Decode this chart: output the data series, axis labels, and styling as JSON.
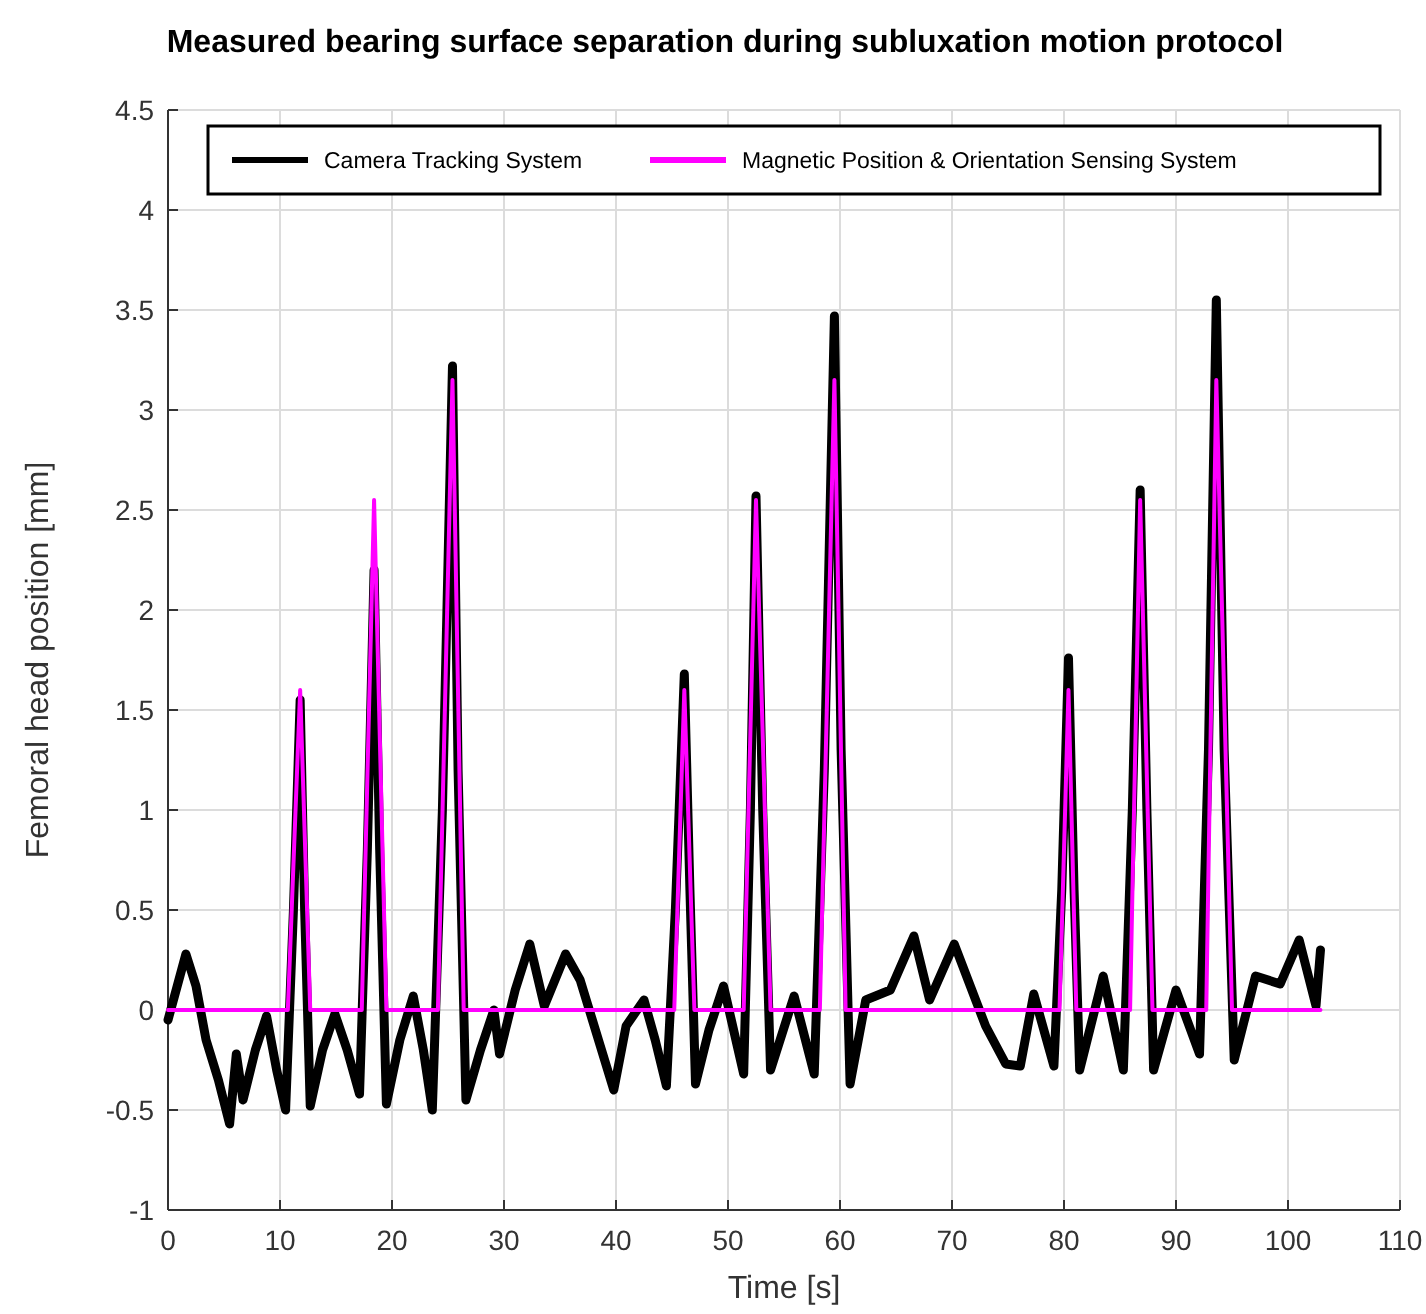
{
  "chart_data": {
    "type": "line",
    "title": "Measured bearing surface separation during subluxation motion protocol",
    "xlabel": "Time [s]",
    "ylabel": "Femoral head position [mm]",
    "xlim": [
      0,
      110
    ],
    "xticks": [
      0,
      10,
      20,
      30,
      40,
      50,
      60,
      70,
      80,
      90,
      100,
      110
    ],
    "ylim": [
      -1,
      4.5
    ],
    "yticks": [
      -1,
      -0.5,
      0,
      0.5,
      1,
      1.5,
      2,
      2.5,
      3,
      3.5,
      4,
      4.5
    ],
    "grid": true,
    "legend": "top",
    "line_style": "solid",
    "series": [
      {
        "name": "Camera Tracking System",
        "color": "#000000",
        "x": [
          0,
          1.6,
          2.5,
          3.4,
          4.5,
          5.5,
          6.1,
          6.7,
          7.8,
          8.8,
          9.7,
          10.5,
          11.2,
          11.8,
          12.2,
          12.7,
          13.8,
          14.9,
          16.0,
          17.1,
          17.8,
          18.4,
          18.9,
          19.5,
          20.7,
          21.9,
          22.8,
          23.6,
          24.5,
          25.4,
          25.9,
          26.6,
          27.9,
          29.1,
          29.6,
          31.0,
          32.3,
          33.6,
          35.5,
          36.8,
          38.6,
          39.8,
          40.9,
          42.5,
          43.5,
          44.5,
          45.3,
          46.1,
          46.6,
          47.1,
          48.3,
          49.6,
          51.4,
          52.0,
          52.5,
          53.1,
          53.8,
          55.9,
          57.7,
          58.6,
          59.5,
          60.1,
          60.9,
          62.3,
          64.5,
          66.6,
          68.0,
          70.2,
          73.0,
          74.8,
          76.1,
          77.3,
          79.1,
          79.8,
          80.4,
          80.9,
          81.4,
          83.5,
          85.3,
          86.1,
          86.8,
          87.4,
          88.0,
          90.0,
          92.1,
          92.9,
          93.6,
          94.3,
          95.2,
          97.1,
          99.3,
          101.0,
          102.5,
          102.9
        ],
        "values": [
          -0.05,
          0.28,
          0.12,
          -0.15,
          -0.35,
          -0.57,
          -0.22,
          -0.45,
          -0.2,
          -0.03,
          -0.3,
          -0.5,
          0.5,
          1.55,
          0.5,
          -0.48,
          -0.2,
          -0.02,
          -0.2,
          -0.42,
          0.8,
          2.2,
          0.8,
          -0.47,
          -0.15,
          0.07,
          -0.2,
          -0.5,
          1.0,
          3.22,
          1.2,
          -0.45,
          -0.2,
          0,
          -0.22,
          0.1,
          0.33,
          0.02,
          0.28,
          0.15,
          -0.18,
          -0.4,
          -0.08,
          0.05,
          -0.15,
          -0.38,
          0.5,
          1.68,
          0.6,
          -0.37,
          -0.1,
          0.12,
          -0.32,
          1.0,
          2.57,
          1.0,
          -0.3,
          0.07,
          -0.32,
          1.2,
          3.47,
          1.3,
          -0.37,
          0.05,
          0.1,
          0.37,
          0.05,
          0.33,
          -0.08,
          -0.27,
          -0.28,
          0.08,
          -0.28,
          0.6,
          1.76,
          0.6,
          -0.3,
          0.17,
          -0.3,
          1.0,
          2.6,
          1.0,
          -0.3,
          0.1,
          -0.22,
          1.3,
          3.55,
          1.3,
          -0.25,
          0.17,
          0.13,
          0.35,
          0.02,
          0.3
        ]
      },
      {
        "name": "Magnetic Position & Orientation Sensing System",
        "color": "#ff00ff",
        "x": [
          0,
          10.7,
          11.8,
          12.7,
          17.3,
          18.4,
          19.5,
          24.1,
          25.4,
          26.4,
          45.2,
          46.1,
          47.0,
          51.4,
          52.5,
          53.8,
          58.2,
          59.5,
          60.5,
          79.6,
          80.4,
          81.1,
          85.9,
          86.8,
          87.9,
          92.7,
          93.6,
          95.0,
          102.9
        ],
        "values": [
          0,
          0,
          1.6,
          0,
          0,
          2.55,
          0,
          0,
          3.15,
          0,
          0,
          1.6,
          0,
          0,
          2.55,
          0,
          0,
          3.15,
          0,
          0,
          1.6,
          0,
          0,
          2.55,
          0,
          0,
          3.15,
          0,
          0
        ]
      }
    ]
  }
}
